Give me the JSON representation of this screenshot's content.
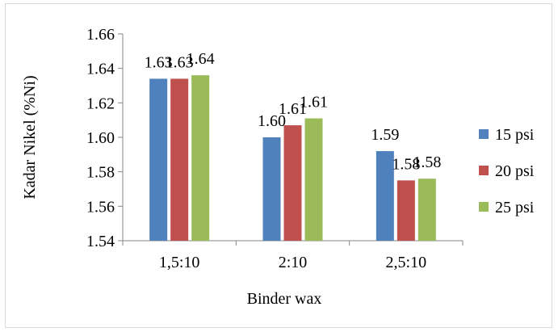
{
  "chart_data": {
    "type": "bar",
    "title": "",
    "xlabel": "Binder wax",
    "ylabel": "Kadar Nikel (%Ni)",
    "categories": [
      "1,5:10",
      "2:10",
      "2,5:10"
    ],
    "ylim": [
      1.54,
      1.66
    ],
    "yticks": [
      1.54,
      1.56,
      1.58,
      1.6,
      1.62,
      1.64,
      1.66
    ],
    "ytick_labels": [
      "1.54",
      "1.56",
      "1.58",
      "1.60",
      "1.62",
      "1.64",
      "1.66"
    ],
    "series": [
      {
        "name": "15 psi",
        "color": "#4F81BD",
        "values": [
          1.634,
          1.6,
          1.592
        ],
        "labels": [
          "1.63",
          "1.60",
          "1.59"
        ]
      },
      {
        "name": "20 psi",
        "color": "#C0504D",
        "values": [
          1.634,
          1.607,
          1.575
        ],
        "labels": [
          "1.63",
          "1.61",
          "1.58"
        ]
      },
      {
        "name": "25 psi",
        "color": "#9BBB59",
        "values": [
          1.636,
          1.611,
          1.576
        ],
        "labels": [
          "1.64",
          "1.61",
          "1.58"
        ]
      }
    ],
    "legend_position": "right",
    "grid": false
  }
}
